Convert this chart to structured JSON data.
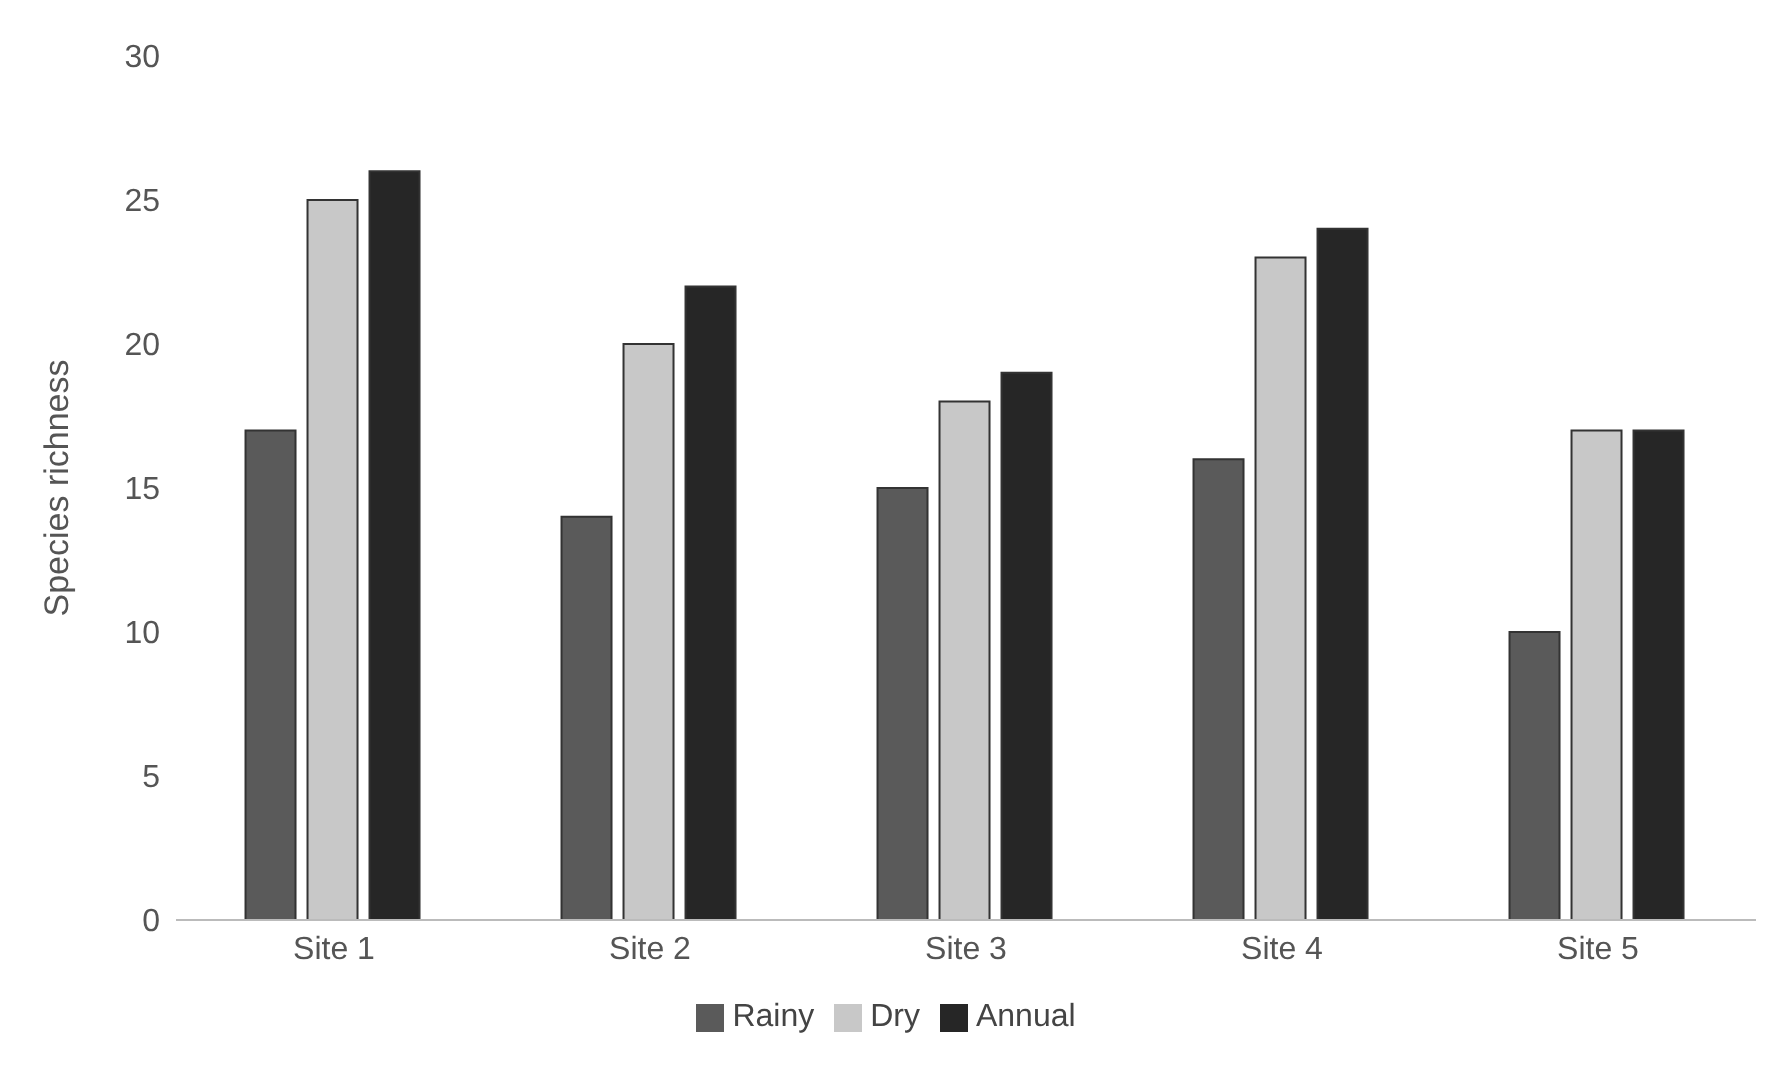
{
  "chart_data": {
    "type": "bar",
    "ylabel": "Species richness",
    "categories": [
      "Site 1",
      "Site 2",
      "Site 3",
      "Site 4",
      "Site 5"
    ],
    "series": [
      {
        "name": "Rainy",
        "color": "#5a5a5a",
        "values": [
          17,
          14,
          15,
          16,
          10
        ]
      },
      {
        "name": "Dry",
        "color": "#c8c8c8",
        "values": [
          25,
          20,
          18,
          23,
          17
        ]
      },
      {
        "name": "Annual",
        "color": "#262626",
        "values": [
          26,
          22,
          19,
          24,
          17
        ]
      }
    ],
    "ylim": [
      0,
      30
    ],
    "yticks": [
      0,
      5,
      10,
      15,
      20,
      25,
      30
    ],
    "grid": false,
    "legend": "bottom"
  }
}
